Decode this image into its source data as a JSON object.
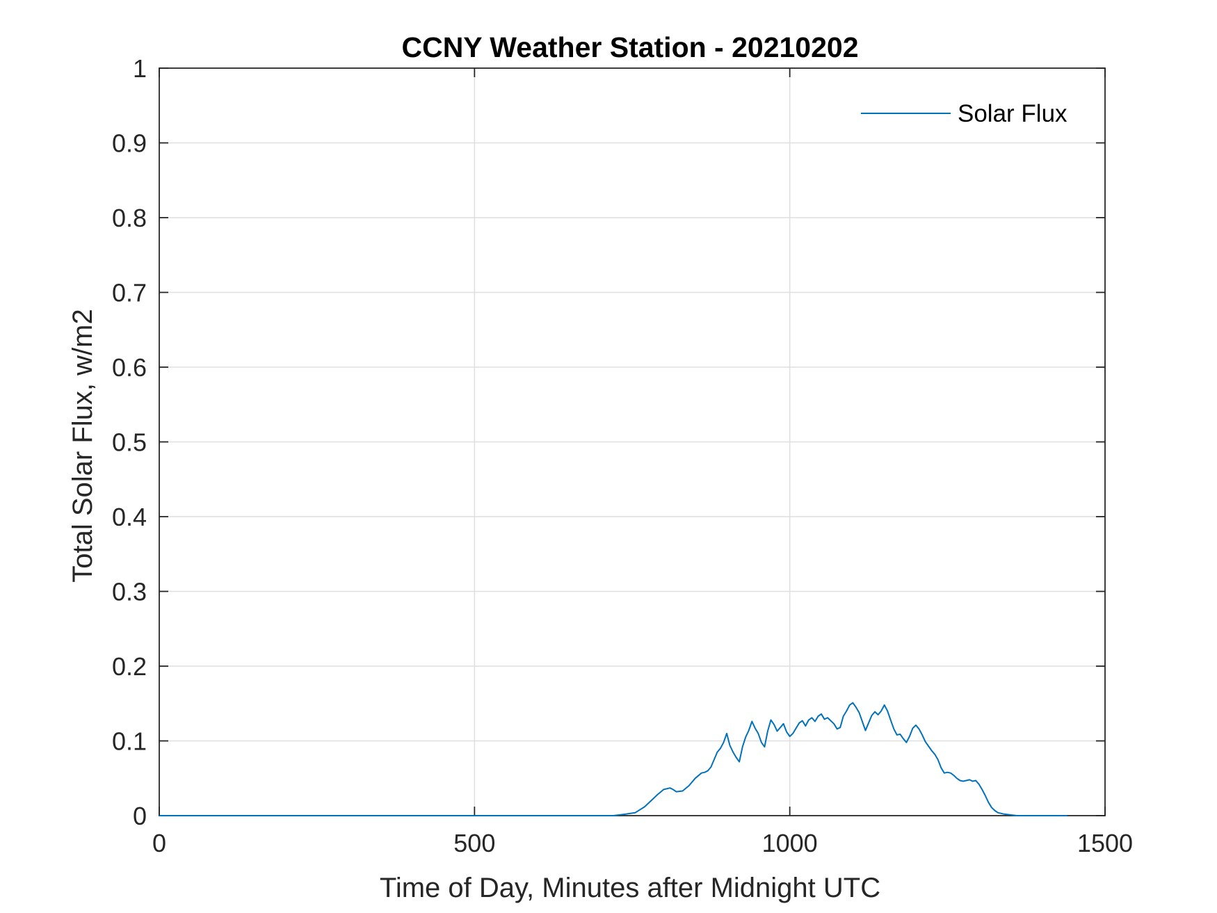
{
  "chart_data": {
    "type": "line",
    "title": "CCNY Weather Station - 20210202",
    "xlabel": "Time of Day, Minutes after Midnight UTC",
    "ylabel": "Total Solar Flux, w/m2",
    "xlim": [
      0,
      1500
    ],
    "ylim": [
      0,
      1
    ],
    "xticks": [
      0,
      500,
      1000,
      1500
    ],
    "xtick_labels": [
      "0",
      "500",
      "1000",
      "1500"
    ],
    "yticks": [
      0,
      0.1,
      0.2,
      0.3,
      0.4,
      0.5,
      0.6,
      0.7,
      0.8,
      0.9,
      1
    ],
    "ytick_labels": [
      "0",
      "0.1",
      "0.2",
      "0.3",
      "0.4",
      "0.5",
      "0.6",
      "0.7",
      "0.8",
      "0.9",
      "1"
    ],
    "grid": true,
    "legend_position": "top-right",
    "colors": {
      "series": "#0072BD",
      "grid": "#dfdfdf",
      "axes": "#262626"
    },
    "series": [
      {
        "name": "Solar Flux",
        "x": [
          0,
          100,
          200,
          300,
          400,
          500,
          600,
          700,
          720,
          740,
          755,
          770,
          780,
          790,
          800,
          810,
          815,
          820,
          830,
          840,
          850,
          860,
          865,
          870,
          875,
          880,
          885,
          890,
          895,
          900,
          905,
          910,
          915,
          920,
          925,
          930,
          935,
          940,
          945,
          950,
          955,
          960,
          965,
          970,
          975,
          980,
          985,
          990,
          995,
          1000,
          1005,
          1010,
          1015,
          1020,
          1025,
          1030,
          1035,
          1040,
          1045,
          1050,
          1055,
          1060,
          1065,
          1070,
          1075,
          1080,
          1085,
          1090,
          1095,
          1100,
          1105,
          1110,
          1115,
          1120,
          1125,
          1130,
          1135,
          1140,
          1145,
          1150,
          1155,
          1160,
          1165,
          1170,
          1175,
          1180,
          1185,
          1190,
          1195,
          1200,
          1205,
          1210,
          1215,
          1220,
          1225,
          1230,
          1235,
          1240,
          1245,
          1250,
          1255,
          1260,
          1265,
          1270,
          1275,
          1280,
          1285,
          1290,
          1295,
          1300,
          1305,
          1310,
          1315,
          1320,
          1325,
          1330,
          1340,
          1350,
          1360,
          1380,
          1400,
          1420,
          1440
        ],
        "y": [
          0,
          0,
          0,
          0,
          0,
          0,
          0,
          0,
          0,
          0.002,
          0.004,
          0.012,
          0.02,
          0.028,
          0.035,
          0.037,
          0.035,
          0.032,
          0.033,
          0.04,
          0.05,
          0.057,
          0.058,
          0.06,
          0.065,
          0.075,
          0.085,
          0.09,
          0.098,
          0.11,
          0.094,
          0.085,
          0.078,
          0.072,
          0.092,
          0.105,
          0.114,
          0.126,
          0.117,
          0.11,
          0.098,
          0.092,
          0.113,
          0.128,
          0.122,
          0.113,
          0.118,
          0.123,
          0.112,
          0.106,
          0.11,
          0.117,
          0.124,
          0.127,
          0.12,
          0.128,
          0.131,
          0.126,
          0.133,
          0.136,
          0.129,
          0.131,
          0.127,
          0.123,
          0.116,
          0.118,
          0.133,
          0.14,
          0.148,
          0.151,
          0.145,
          0.138,
          0.126,
          0.114,
          0.124,
          0.134,
          0.139,
          0.135,
          0.14,
          0.148,
          0.14,
          0.128,
          0.116,
          0.108,
          0.109,
          0.103,
          0.098,
          0.106,
          0.117,
          0.121,
          0.116,
          0.108,
          0.099,
          0.093,
          0.087,
          0.082,
          0.075,
          0.064,
          0.057,
          0.058,
          0.057,
          0.054,
          0.05,
          0.047,
          0.046,
          0.047,
          0.048,
          0.046,
          0.047,
          0.042,
          0.035,
          0.027,
          0.018,
          0.011,
          0.007,
          0.004,
          0.002,
          0.001,
          0,
          0,
          0,
          0,
          0
        ]
      }
    ]
  }
}
